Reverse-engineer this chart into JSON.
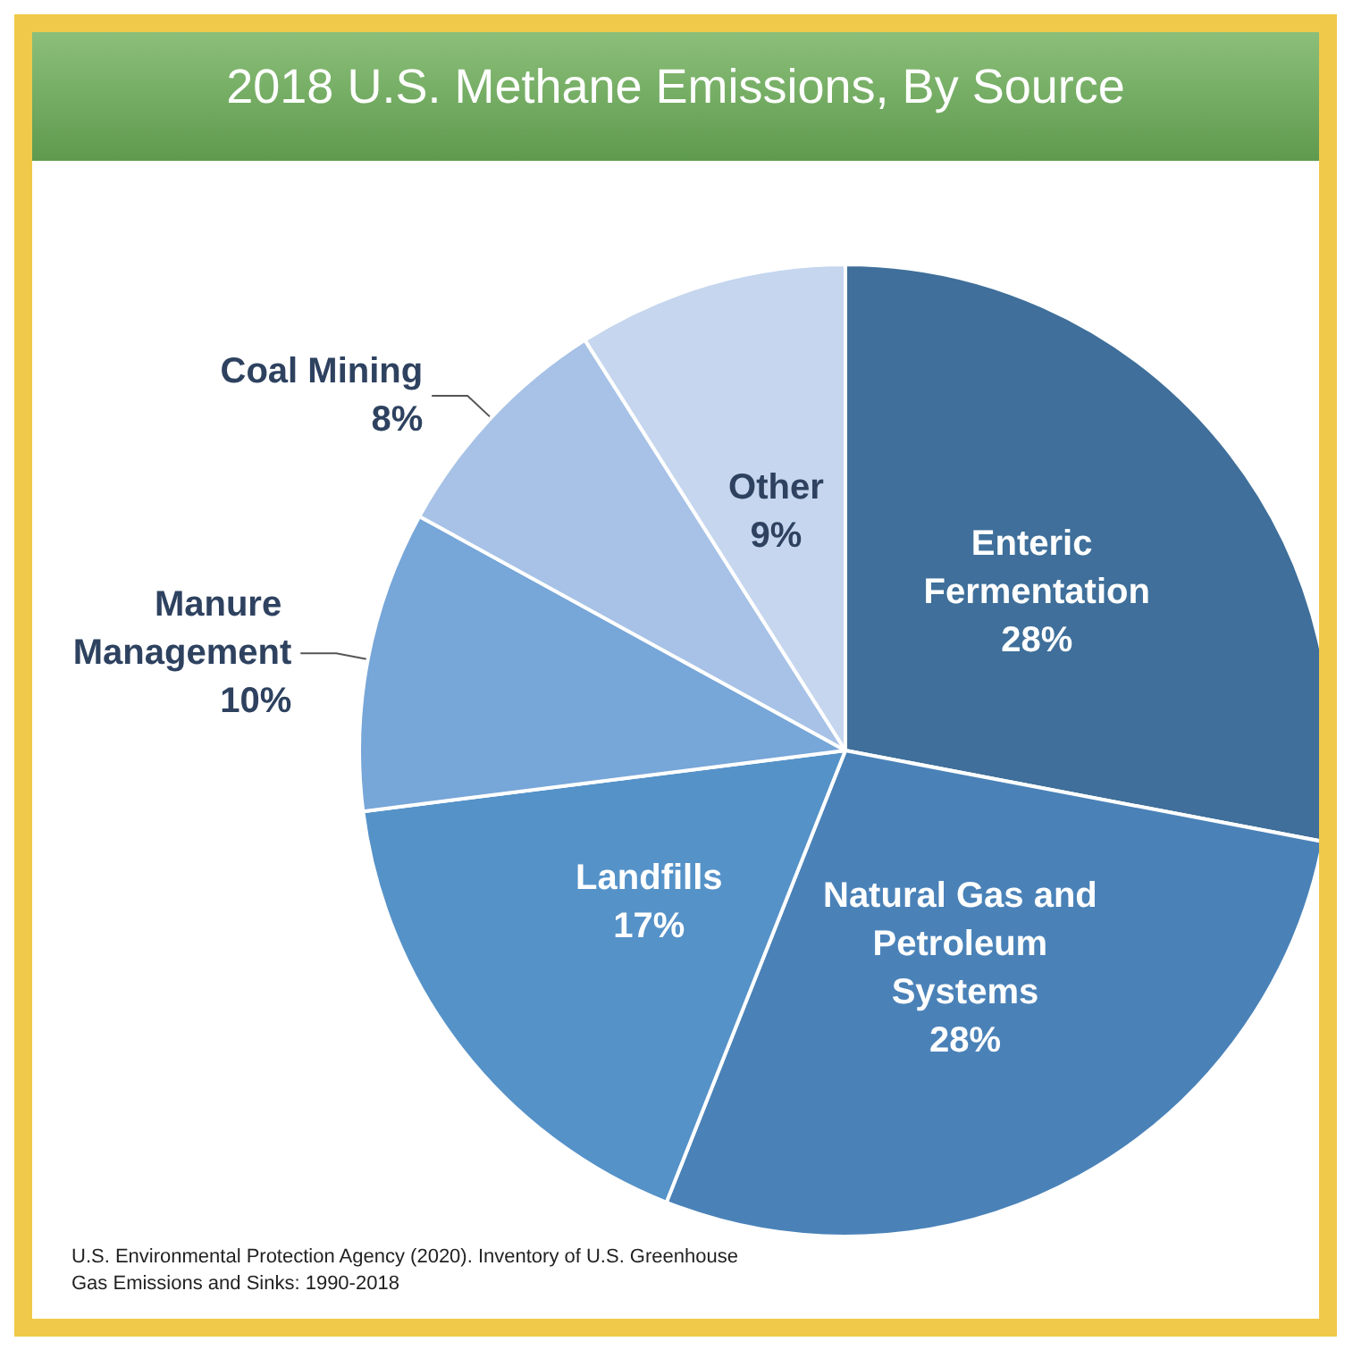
{
  "chart_data": {
    "type": "pie",
    "title": "2018 U.S. Methane Emissions, By Source",
    "categories": [
      "Enteric Fermentation",
      "Natural Gas and Petroleum Systems",
      "Landfills",
      "Manure Management",
      "Coal Mining",
      "Other"
    ],
    "values": [
      28,
      28,
      17,
      10,
      8,
      9
    ],
    "colors": [
      "#3f6f9a",
      "#4a82b8",
      "#5592c8",
      "#77a6d8",
      "#a7c2e6",
      "#c5d6ee"
    ],
    "value_labels": [
      "28%",
      "28%",
      "17%",
      "10%",
      "8%",
      "9%"
    ],
    "annotations": [
      "U.S. Environmental Protection Agency (2020). Inventory of U.S. Greenhouse Gas Emissions and Sinks: 1990-2018"
    ]
  }
}
